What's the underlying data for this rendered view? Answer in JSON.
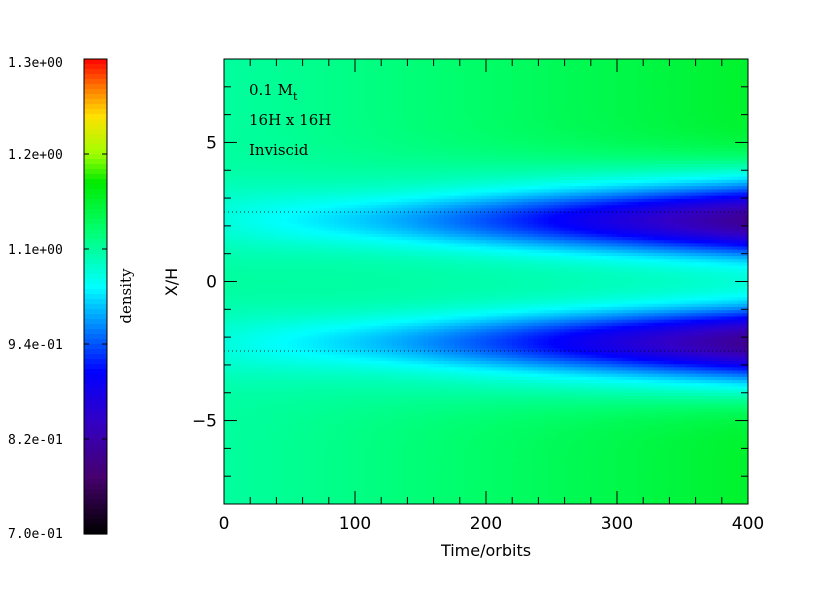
{
  "chart_data": {
    "type": "heatmap",
    "xlabel": "Time/orbits",
    "ylabel": "X/H",
    "xlim": [
      0,
      400
    ],
    "ylim": [
      -8,
      8
    ],
    "x_ticks": [
      0,
      100,
      200,
      300,
      400
    ],
    "y_ticks": [
      -5,
      0,
      5
    ],
    "reference_lines_y": [
      -2.5,
      2.5
    ],
    "annotations": {
      "mass_value": "0.1 M",
      "mass_subscript": "t",
      "domain": "16H x 16H",
      "viscosity": "Inviscid"
    },
    "colorbar": {
      "label": "density",
      "range": [
        0.7,
        1.3
      ],
      "tick_labels": [
        "1.3e+00",
        "1.2e+00",
        "1.1e+00",
        "9.4e-01",
        "8.2e-01",
        "7.0e-01"
      ],
      "tick_values": [
        1.3,
        1.18,
        1.06,
        0.94,
        0.82,
        0.7
      ],
      "colormap": "rainbow"
    },
    "field": {
      "background_density": 1.06,
      "band_centers_y": [
        -2.2,
        2.2
      ],
      "band_min_density_at_400": 0.8,
      "center_density_at_400": 1.04,
      "far_density_at_400": 1.12
    }
  }
}
